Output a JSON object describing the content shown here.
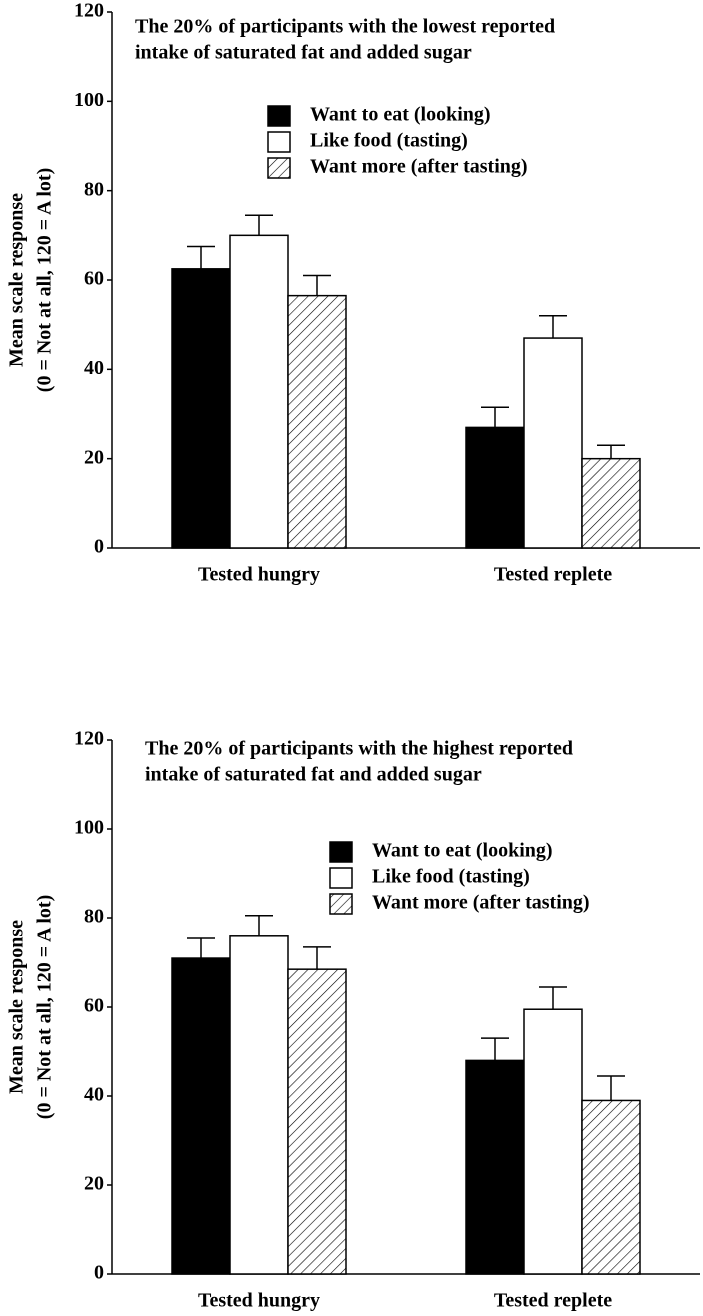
{
  "chart_data": [
    {
      "type": "bar",
      "title": [
        "The 20% of participants with the lowest reported",
        "intake of saturated fat and added sugar"
      ],
      "ylabel": [
        "Mean scale response",
        "(0 = Not at all, 120 = A lot)"
      ],
      "categories": [
        "Tested hungry",
        "Tested replete"
      ],
      "series": [
        {
          "name": "Want to eat (looking)",
          "color": "#000000",
          "hatch": false,
          "values": [
            62.5,
            27
          ],
          "error": [
            5,
            4.5
          ]
        },
        {
          "name": "Like food (tasting)",
          "color": "#ffffff",
          "hatch": false,
          "values": [
            70,
            47
          ],
          "error": [
            4.5,
            5
          ]
        },
        {
          "name": "Want more (after tasting)",
          "color": "#ffffff",
          "hatch": true,
          "values": [
            56.5,
            20
          ],
          "error": [
            4.5,
            3
          ]
        }
      ],
      "ylim": [
        0,
        120
      ],
      "yticks": [
        0,
        20,
        40,
        60,
        80,
        100,
        120
      ],
      "grid": false
    },
    {
      "type": "bar",
      "title": [
        "The 20% of participants with the highest reported",
        "intake of saturated fat and added sugar"
      ],
      "ylabel": [
        "Mean scale response",
        "(0 = Not at all, 120 = A lot)"
      ],
      "categories": [
        "Tested hungry",
        "Tested replete"
      ],
      "series": [
        {
          "name": "Want to eat (looking)",
          "color": "#000000",
          "hatch": false,
          "values": [
            71,
            48
          ],
          "error": [
            4.5,
            5
          ]
        },
        {
          "name": "Like food (tasting)",
          "color": "#ffffff",
          "hatch": false,
          "values": [
            76,
            59.5
          ],
          "error": [
            4.5,
            5
          ]
        },
        {
          "name": "Want more (after tasting)",
          "color": "#ffffff",
          "hatch": true,
          "values": [
            68.5,
            39
          ],
          "error": [
            5,
            5.5
          ]
        }
      ],
      "ylim": [
        0,
        120
      ],
      "yticks": [
        0,
        20,
        40,
        60,
        80,
        100,
        120
      ],
      "grid": false
    }
  ]
}
